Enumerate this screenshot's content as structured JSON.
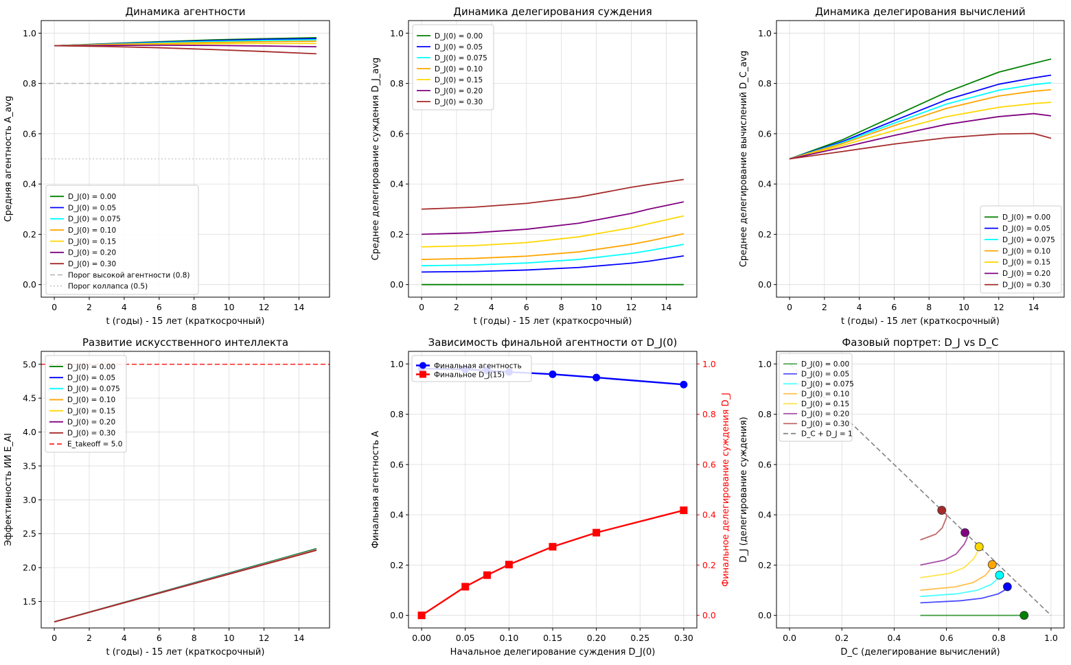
{
  "chart_data": [
    {
      "type": "line",
      "title": "Динамика агентности",
      "xlabel": "t (годы) - 15 лет (краткосрочный)",
      "ylabel": "Средняя агентность A_avg",
      "xlim": [
        -0.75,
        15.75
      ],
      "ylim": [
        -0.05,
        1.05
      ],
      "xticks": [
        0,
        2,
        4,
        6,
        8,
        10,
        12,
        14
      ],
      "yticks": [
        0.0,
        0.2,
        0.4,
        0.6,
        0.8,
        1.0
      ],
      "legend_loc": "lower-left",
      "x": [
        0,
        3,
        6,
        9,
        12,
        15
      ],
      "series": [
        {
          "name": "D_J(0) = 0.00",
          "color": "#008000",
          "values": [
            0.95,
            0.958,
            0.966,
            0.973,
            0.978,
            0.982
          ]
        },
        {
          "name": "D_J(0) = 0.05",
          "color": "#0000ff",
          "values": [
            0.95,
            0.957,
            0.964,
            0.97,
            0.975,
            0.978
          ]
        },
        {
          "name": "D_J(0) = 0.075",
          "color": "#00ffff",
          "values": [
            0.95,
            0.956,
            0.962,
            0.967,
            0.971,
            0.974
          ]
        },
        {
          "name": "D_J(0) = 0.10",
          "color": "#ffa500",
          "values": [
            0.95,
            0.955,
            0.959,
            0.963,
            0.966,
            0.968
          ]
        },
        {
          "name": "D_J(0) = 0.15",
          "color": "#ffd700",
          "values": [
            0.95,
            0.953,
            0.956,
            0.958,
            0.959,
            0.959
          ]
        },
        {
          "name": "D_J(0) = 0.20",
          "color": "#800080",
          "values": [
            0.95,
            0.951,
            0.952,
            0.951,
            0.949,
            0.946
          ]
        },
        {
          "name": "D_J(0) = 0.30",
          "color": "#a52a2a",
          "values": [
            0.95,
            0.947,
            0.942,
            0.935,
            0.927,
            0.918
          ]
        }
      ],
      "hlines": [
        {
          "y": 0.8,
          "color": "#bbbbbb",
          "style": "dashed",
          "label": "Порог высокой агентности (0.8)"
        },
        {
          "y": 0.5,
          "color": "#cccccc",
          "style": "dotted",
          "label": "Порог коллапса (0.5)"
        }
      ]
    },
    {
      "type": "line",
      "title": "Динамика делегирования суждения",
      "xlabel": "t (годы) - 15 лет (краткосрочный)",
      "ylabel": "Среднее делегирование суждения D_J_avg",
      "xlim": [
        -0.75,
        15.75
      ],
      "ylim": [
        -0.05,
        1.05
      ],
      "xticks": [
        0,
        2,
        4,
        6,
        8,
        10,
        12,
        14
      ],
      "yticks": [
        0.0,
        0.2,
        0.4,
        0.6,
        0.8,
        1.0
      ],
      "legend_loc": "upper-left",
      "x": [
        0,
        3,
        6,
        9,
        12,
        13,
        15
      ],
      "series": [
        {
          "name": "D_J(0) = 0.00",
          "color": "#008000",
          "values": [
            0.0,
            0.0,
            0.0,
            0.0,
            0.0,
            0.0,
            0.0
          ]
        },
        {
          "name": "D_J(0) = 0.05",
          "color": "#0000ff",
          "values": [
            0.05,
            0.052,
            0.058,
            0.068,
            0.085,
            0.093,
            0.114
          ]
        },
        {
          "name": "D_J(0) = 0.075",
          "color": "#00ffff",
          "values": [
            0.075,
            0.078,
            0.086,
            0.1,
            0.124,
            0.135,
            0.16
          ]
        },
        {
          "name": "D_J(0) = 0.10",
          "color": "#ffa500",
          "values": [
            0.1,
            0.104,
            0.113,
            0.13,
            0.16,
            0.173,
            0.202
          ]
        },
        {
          "name": "D_J(0) = 0.15",
          "color": "#ffd700",
          "values": [
            0.15,
            0.155,
            0.167,
            0.19,
            0.226,
            0.242,
            0.273
          ]
        },
        {
          "name": "D_J(0) = 0.20",
          "color": "#800080",
          "values": [
            0.2,
            0.206,
            0.22,
            0.244,
            0.283,
            0.3,
            0.329
          ]
        },
        {
          "name": "D_J(0) = 0.30",
          "color": "#a52a2a",
          "values": [
            0.3,
            0.308,
            0.323,
            0.348,
            0.387,
            0.398,
            0.418
          ]
        }
      ]
    },
    {
      "type": "line",
      "title": "Динамика делегирования вычислений",
      "xlabel": "t (годы) - 15 лет (краткосрочный)",
      "ylabel": "Среднее делегирование вычислений D_C_avg",
      "xlim": [
        -0.75,
        15.75
      ],
      "ylim": [
        -0.05,
        1.05
      ],
      "xticks": [
        0,
        2,
        4,
        6,
        8,
        10,
        12,
        14
      ],
      "yticks": [
        0.0,
        0.2,
        0.4,
        0.6,
        0.8,
        1.0
      ],
      "legend_loc": "lower-right",
      "x": [
        0,
        3,
        6,
        9,
        12,
        14,
        15
      ],
      "series": [
        {
          "name": "D_J(0) = 0.00",
          "color": "#008000",
          "values": [
            0.5,
            0.575,
            0.67,
            0.765,
            0.845,
            0.88,
            0.897
          ]
        },
        {
          "name": "D_J(0) = 0.05",
          "color": "#0000ff",
          "values": [
            0.5,
            0.568,
            0.652,
            0.735,
            0.797,
            0.822,
            0.833
          ]
        },
        {
          "name": "D_J(0) = 0.075",
          "color": "#00ffff",
          "values": [
            0.5,
            0.564,
            0.642,
            0.718,
            0.773,
            0.795,
            0.803
          ]
        },
        {
          "name": "D_J(0) = 0.10",
          "color": "#ffa500",
          "values": [
            0.5,
            0.56,
            0.632,
            0.701,
            0.75,
            0.769,
            0.775
          ]
        },
        {
          "name": "D_J(0) = 0.15",
          "color": "#ffd700",
          "values": [
            0.5,
            0.553,
            0.613,
            0.668,
            0.705,
            0.72,
            0.725
          ]
        },
        {
          "name": "D_J(0) = 0.20",
          "color": "#800080",
          "values": [
            0.5,
            0.545,
            0.593,
            0.637,
            0.668,
            0.68,
            0.671
          ]
        },
        {
          "name": "D_J(0) = 0.30",
          "color": "#a52a2a",
          "values": [
            0.5,
            0.529,
            0.559,
            0.584,
            0.599,
            0.601,
            0.582
          ]
        }
      ]
    },
    {
      "type": "line",
      "title": "Развитие искусственного интеллекта",
      "xlabel": "t (годы) - 15 лет (краткосрочный)",
      "ylabel": "Эффективность ИИ E_AI",
      "xlim": [
        -0.75,
        15.75
      ],
      "ylim": [
        1.11,
        5.19
      ],
      "xticks": [
        0,
        2,
        4,
        6,
        8,
        10,
        12,
        14
      ],
      "yticks": [
        1.5,
        2.0,
        2.5,
        3.0,
        3.5,
        4.0,
        4.5,
        5.0
      ],
      "legend_loc": "upper-left",
      "x": [
        0,
        15
      ],
      "series": [
        {
          "name": "D_J(0) = 0.00",
          "color": "#008000",
          "values": [
            1.2,
            2.28
          ]
        },
        {
          "name": "D_J(0) = 0.05",
          "color": "#0000ff",
          "values": [
            1.2,
            2.272
          ]
        },
        {
          "name": "D_J(0) = 0.075",
          "color": "#00ffff",
          "values": [
            1.2,
            2.268
          ]
        },
        {
          "name": "D_J(0) = 0.10",
          "color": "#ffa500",
          "values": [
            1.2,
            2.265
          ]
        },
        {
          "name": "D_J(0) = 0.15",
          "color": "#ffd700",
          "values": [
            1.2,
            2.262
          ]
        },
        {
          "name": "D_J(0) = 0.20",
          "color": "#800080",
          "values": [
            1.2,
            2.258
          ]
        },
        {
          "name": "D_J(0) = 0.30",
          "color": "#a52a2a",
          "values": [
            1.2,
            2.255
          ]
        }
      ],
      "hlines": [
        {
          "y": 5.0,
          "color": "#ff3030",
          "style": "dashed",
          "label": "E_takeoff = 5.0"
        }
      ]
    },
    {
      "type": "line",
      "title": "Зависимость финальной агентности от D_J(0)",
      "xlabel": "Начальное делегирование суждения D_J(0)",
      "ylabel": "Финальная агентность A",
      "ylabel_right": "Финальное делегирование суждения D_J",
      "xlim": [
        -0.015,
        0.315
      ],
      "ylim": [
        -0.05,
        1.05
      ],
      "xticks": [
        0.0,
        0.05,
        0.1,
        0.15,
        0.2,
        0.25,
        0.3
      ],
      "xtick_labels": [
        "0.00",
        "0.05",
        "0.10",
        "0.15",
        "0.20",
        "0.25",
        "0.30"
      ],
      "yticks": [
        0.0,
        0.2,
        0.4,
        0.6,
        0.8,
        1.0
      ],
      "legend_loc": "upper-left",
      "x": [
        0.0,
        0.05,
        0.075,
        0.1,
        0.15,
        0.2,
        0.3
      ],
      "series": [
        {
          "name": "Финальная агентность",
          "color": "#0000ff",
          "marker": "circle",
          "values": [
            0.982,
            0.978,
            0.974,
            0.968,
            0.959,
            0.946,
            0.918
          ]
        },
        {
          "name": "Финальное D_J(15)",
          "color": "#ff0000",
          "marker": "square",
          "values": [
            0.0,
            0.114,
            0.16,
            0.202,
            0.273,
            0.329,
            0.418
          ]
        }
      ]
    },
    {
      "type": "line",
      "title": "Фазовый портрет: D_J vs D_C",
      "xlabel": "D_C (делегирование вычислений)",
      "ylabel": "D_J (делегирование суждения)",
      "xlim": [
        -0.05,
        1.05
      ],
      "ylim": [
        -0.05,
        1.05
      ],
      "xticks": [
        0.0,
        0.2,
        0.4,
        0.6,
        0.8,
        1.0
      ],
      "yticks": [
        0.0,
        0.2,
        0.4,
        0.6,
        0.8,
        1.0
      ],
      "legend_loc": "upper-left",
      "series": [
        {
          "name": "D_J(0) = 0.00",
          "color": "#008000",
          "x": [
            0.5,
            0.67,
            0.845,
            0.897
          ],
          "y": [
            0.0,
            0.0,
            0.0,
            0.0
          ]
        },
        {
          "name": "D_J(0) = 0.05",
          "color": "#0000ff",
          "x": [
            0.5,
            0.652,
            0.735,
            0.797,
            0.822,
            0.833
          ],
          "y": [
            0.05,
            0.058,
            0.068,
            0.085,
            0.1,
            0.114
          ]
        },
        {
          "name": "D_J(0) = 0.075",
          "color": "#00ffff",
          "x": [
            0.5,
            0.642,
            0.718,
            0.773,
            0.795,
            0.803
          ],
          "y": [
            0.075,
            0.086,
            0.1,
            0.124,
            0.145,
            0.16
          ]
        },
        {
          "name": "D_J(0) = 0.10",
          "color": "#ffa500",
          "x": [
            0.5,
            0.632,
            0.701,
            0.75,
            0.769,
            0.775
          ],
          "y": [
            0.1,
            0.113,
            0.13,
            0.16,
            0.185,
            0.202
          ]
        },
        {
          "name": "D_J(0) = 0.15",
          "color": "#ffd700",
          "x": [
            0.5,
            0.613,
            0.668,
            0.705,
            0.72,
            0.725
          ],
          "y": [
            0.15,
            0.167,
            0.19,
            0.226,
            0.255,
            0.273
          ]
        },
        {
          "name": "D_J(0) = 0.20",
          "color": "#800080",
          "x": [
            0.5,
            0.593,
            0.637,
            0.668,
            0.68,
            0.671
          ],
          "y": [
            0.2,
            0.22,
            0.244,
            0.283,
            0.31,
            0.329
          ]
        },
        {
          "name": "D_J(0) = 0.30",
          "color": "#a52a2a",
          "x": [
            0.5,
            0.559,
            0.584,
            0.599,
            0.601,
            0.582
          ],
          "y": [
            0.3,
            0.323,
            0.348,
            0.387,
            0.4,
            0.418
          ]
        }
      ],
      "endpoints": [
        {
          "color": "#008000",
          "x": 0.897,
          "y": 0.0
        },
        {
          "color": "#0000ff",
          "x": 0.833,
          "y": 0.114
        },
        {
          "color": "#00ffff",
          "x": 0.803,
          "y": 0.16
        },
        {
          "color": "#ffa500",
          "x": 0.775,
          "y": 0.202
        },
        {
          "color": "#ffd700",
          "x": 0.725,
          "y": 0.273
        },
        {
          "color": "#800080",
          "x": 0.671,
          "y": 0.329
        },
        {
          "color": "#a52a2a",
          "x": 0.582,
          "y": 0.418
        }
      ],
      "refline": {
        "label": "D_C + D_J = 1",
        "x": [
          0.0,
          1.0
        ],
        "y": [
          1.0,
          0.0
        ],
        "color": "#808080",
        "style": "dashed"
      }
    }
  ]
}
